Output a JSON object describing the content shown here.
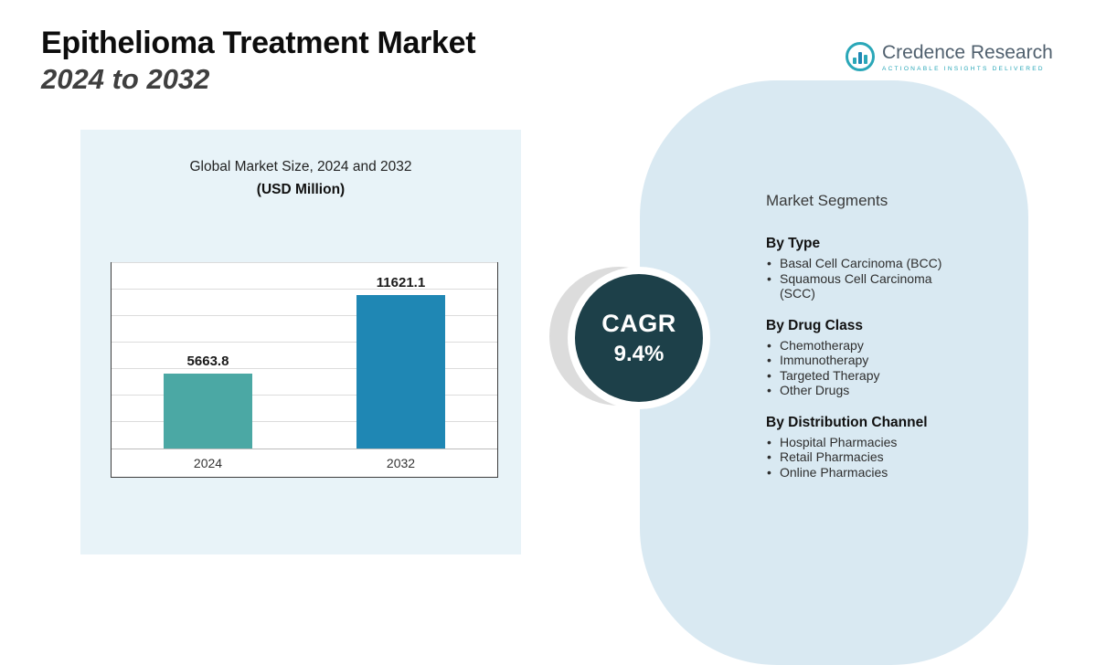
{
  "header": {
    "title": "Epithelioma Treatment Market",
    "subtitle": "2024 to 2032"
  },
  "logo": {
    "brand": "Credence Research",
    "tagline": "Actionable Insights Delivered"
  },
  "chart_panel": {
    "title": "Global Market Size, 2024 and 2032",
    "subtitle": "(USD Million)"
  },
  "chart_data": {
    "type": "bar",
    "title": "Global Market Size, 2024 and 2032",
    "subtitle": "(USD Million)",
    "categories": [
      "2024",
      "2032"
    ],
    "values": [
      5663.8,
      11621.1
    ],
    "data_labels": [
      "5663.8",
      "11621.1"
    ],
    "xlabel": "",
    "ylabel": "",
    "ylim": [
      0,
      14000
    ],
    "grid_step": 2000,
    "grid": true,
    "legend": false,
    "bar_colors": [
      "#4BA8A4",
      "#1F87B4"
    ]
  },
  "cagr": {
    "label": "CAGR",
    "value": "9.4%"
  },
  "segments": {
    "title": "Market Segments",
    "groups": [
      {
        "heading": "By Type",
        "items": [
          "Basal Cell Carcinoma (BCC)",
          "Squamous Cell Carcinoma (SCC)"
        ]
      },
      {
        "heading": "By Drug Class",
        "items": [
          "Chemotherapy",
          "Immunotherapy",
          "Targeted Therapy",
          "Other Drugs"
        ]
      },
      {
        "heading": "By Distribution Channel",
        "items": [
          "Hospital Pharmacies",
          "Retail Pharmacies",
          "Online Pharmacies"
        ]
      }
    ]
  },
  "colors": {
    "bar_2024": "#4BA8A4",
    "bar_2032": "#1F87B4",
    "cagr_circle": "#1D4049",
    "left_panel": "#E8F3F8",
    "right_panel": "#D9E9F2",
    "brand_teal": "#2AA7B8"
  }
}
